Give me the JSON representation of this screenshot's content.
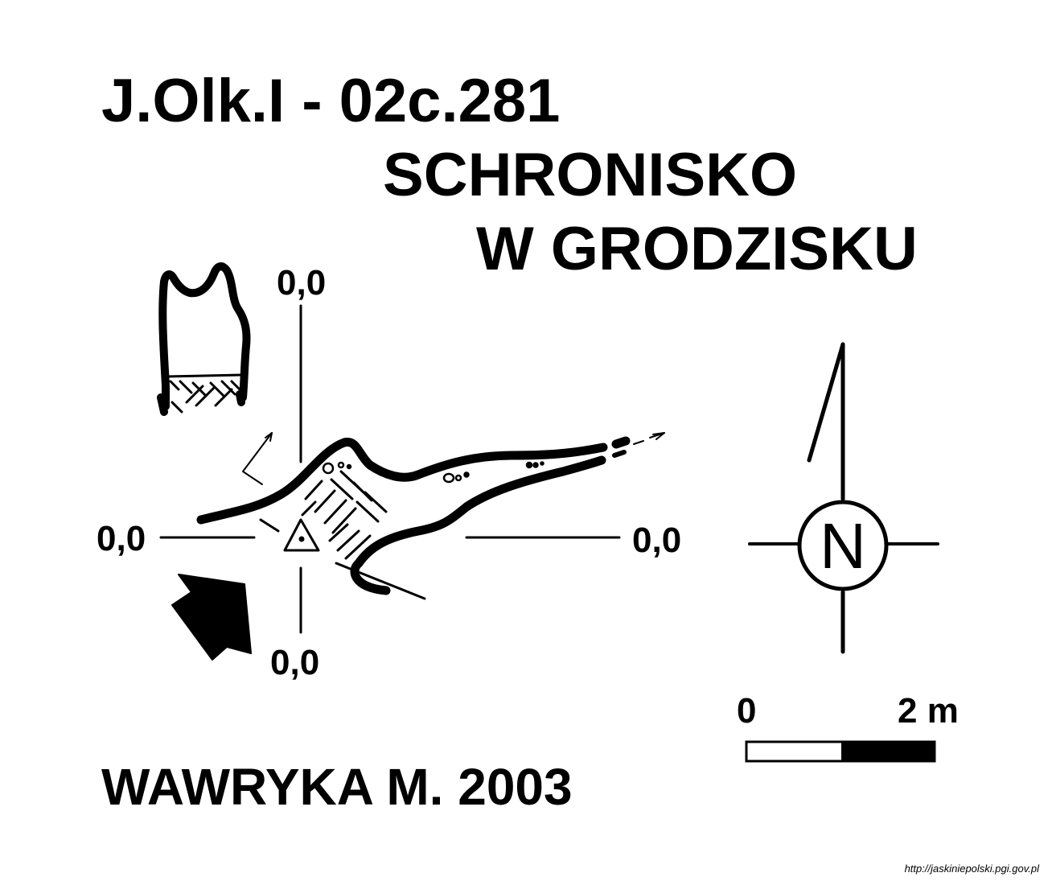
{
  "header": {
    "cave_code": "J.Olk.I - 02c.281",
    "cave_name_line1": "SCHRONISKO",
    "cave_name_line2": "W GRODZISKU"
  },
  "coordinates": {
    "top": "0,0",
    "left": "0,0",
    "right": "0,0",
    "bottom": "0,0"
  },
  "compass": {
    "north_label": "N"
  },
  "scale_bar": {
    "start_label": "0",
    "end_label": "2 m"
  },
  "author": "WAWRYKA M. 2003",
  "source_url": "http://jaskiniepolski.pgi.gov.pl",
  "colors": {
    "ink": "#000000",
    "background": "#ffffff"
  }
}
